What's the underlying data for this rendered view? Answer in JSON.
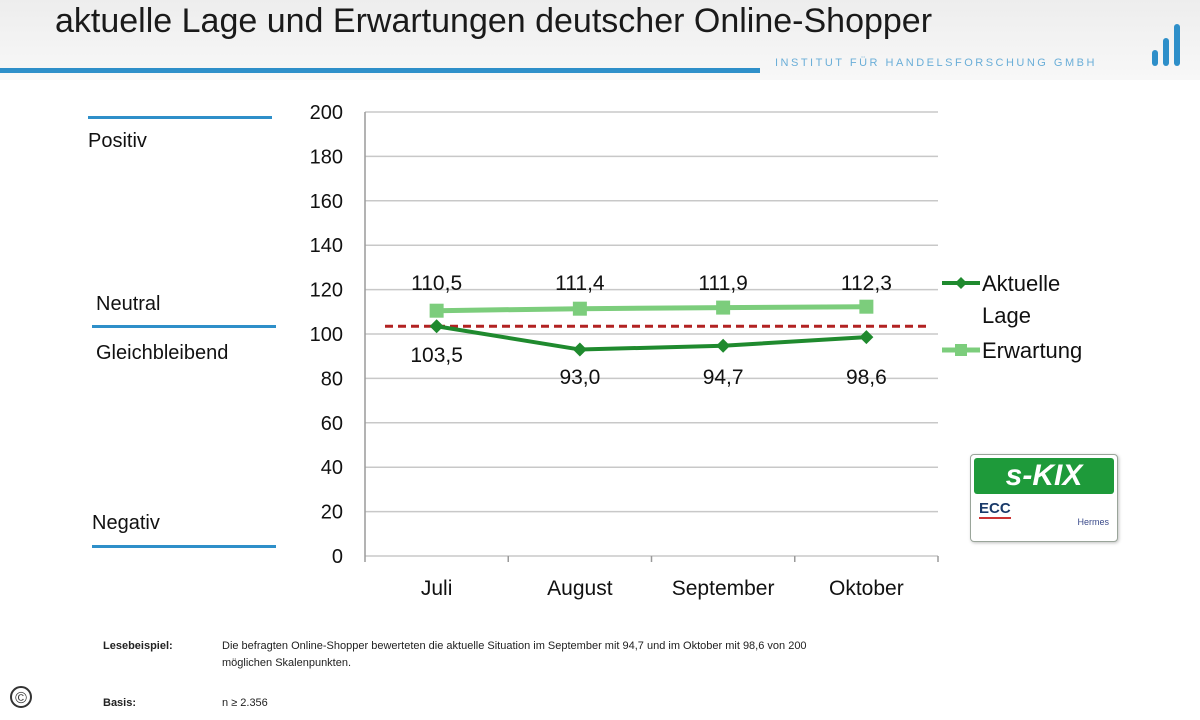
{
  "header": {
    "title": "aktuelle Lage und Erwartungen deutscher Online-Shopper",
    "institute": "INSTITUT FÜR HANDELSFORSCHUNG GMBH"
  },
  "side_labels": {
    "positive": "Positiv",
    "neutral": "Neutral",
    "unchanged": "Gleichbleibend",
    "negative": "Negativ"
  },
  "chart_data": {
    "type": "line",
    "categories": [
      "Juli",
      "August",
      "September",
      "Oktober"
    ],
    "ylim": [
      0,
      200
    ],
    "yticks": [
      "0",
      "20",
      "40",
      "60",
      "80",
      "100",
      "120",
      "140",
      "160",
      "180",
      "200"
    ],
    "reference_line": 103.5,
    "grid": true,
    "legend_position": "right",
    "series": [
      {
        "name": "Aktuelle Lage",
        "legend_lines": [
          "Aktuelle",
          "Lage"
        ],
        "values": [
          103.5,
          93.0,
          94.7,
          98.6
        ],
        "labels": [
          "103,5",
          "93,0",
          "94,7",
          "98,6"
        ],
        "color": "#1f8a2e",
        "marker": "diamond"
      },
      {
        "name": "Erwartung",
        "legend_lines": [
          "Erwartung"
        ],
        "values": [
          110.5,
          111.4,
          111.9,
          112.3
        ],
        "labels": [
          "110,5",
          "111,4",
          "111,9",
          "112,3"
        ],
        "color": "#7ccd7c",
        "marker": "square"
      }
    ],
    "reference_color": "#b22222"
  },
  "badge": {
    "title": "s-KIX",
    "ecc": "ECC",
    "partner": "Hermes"
  },
  "footnotes": {
    "example_label": "Lesebeispiel:",
    "example_text_line1": "Die befragten Online-Shopper bewerteten die aktuelle Situation im September mit 94,7 und im Oktober mit 98,6 von 200",
    "example_text_line2": "möglichen Skalenpunkten.",
    "basis_label": "Basis:",
    "basis_text": "n ≥ 2.356"
  },
  "copyright": "©",
  "colors": {
    "accent": "#2e8fc9",
    "badge_green": "#1e9a3a"
  }
}
